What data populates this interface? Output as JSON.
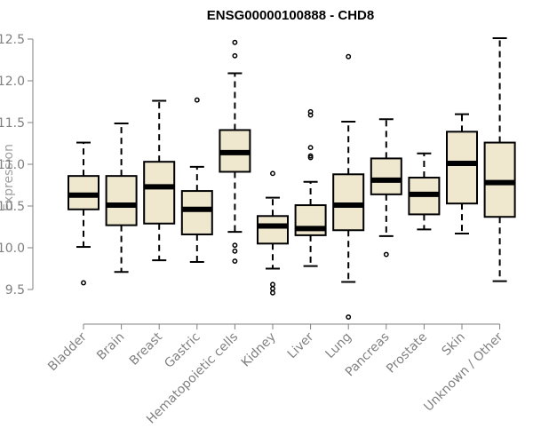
{
  "chart_data": {
    "type": "boxplot",
    "title": "ENSG00000100888 - CHD8",
    "ylabel": "Expression",
    "xlabel": "",
    "ylim": [
      9.2,
      12.55
    ],
    "yticks": [
      "9.5",
      "10.0",
      "10.5",
      "11.0",
      "11.5",
      "12.0",
      "12.5"
    ],
    "box_fill": "#efe8cf",
    "categories": [
      "Bladder",
      "Brain",
      "Breast",
      "Gastric",
      "Hematopoietic cells",
      "Kidney",
      "Liver",
      "Lung",
      "Pancreas",
      "Prostate",
      "Skin",
      "Unknown / Other"
    ],
    "boxes": [
      {
        "whisker_low": 10.01,
        "q1": 10.46,
        "median": 10.63,
        "q3": 10.86,
        "whisker_high": 11.26,
        "outliers": [
          9.58
        ]
      },
      {
        "whisker_low": 9.71,
        "q1": 10.27,
        "median": 10.51,
        "q3": 10.86,
        "whisker_high": 11.49,
        "outliers": []
      },
      {
        "whisker_low": 9.85,
        "q1": 10.29,
        "median": 10.73,
        "q3": 11.03,
        "whisker_high": 11.76,
        "outliers": []
      },
      {
        "whisker_low": 9.83,
        "q1": 10.16,
        "median": 10.46,
        "q3": 10.68,
        "whisker_high": 10.97,
        "outliers": [
          11.77
        ]
      },
      {
        "whisker_low": 10.19,
        "q1": 10.91,
        "median": 11.14,
        "q3": 11.41,
        "whisker_high": 12.09,
        "outliers": [
          9.84,
          9.96,
          10.03,
          12.3,
          12.46
        ]
      },
      {
        "whisker_low": 9.75,
        "q1": 10.05,
        "median": 10.26,
        "q3": 10.38,
        "whisker_high": 10.6,
        "outliers": [
          9.46,
          9.51,
          9.56,
          10.89
        ]
      },
      {
        "whisker_low": 9.78,
        "q1": 10.15,
        "median": 10.23,
        "q3": 10.51,
        "whisker_high": 10.79,
        "outliers": [
          11.08,
          11.1,
          11.2,
          11.59,
          11.63
        ]
      },
      {
        "whisker_low": 9.59,
        "q1": 10.21,
        "median": 10.51,
        "q3": 10.88,
        "whisker_high": 11.51,
        "outliers": [
          9.17,
          12.29
        ]
      },
      {
        "whisker_low": 10.14,
        "q1": 10.64,
        "median": 10.81,
        "q3": 11.07,
        "whisker_high": 11.54,
        "outliers": [
          9.92
        ]
      },
      {
        "whisker_low": 10.22,
        "q1": 10.4,
        "median": 10.64,
        "q3": 10.84,
        "whisker_high": 11.13,
        "outliers": []
      },
      {
        "whisker_low": 10.17,
        "q1": 10.53,
        "median": 11.01,
        "q3": 11.39,
        "whisker_high": 11.6,
        "outliers": []
      },
      {
        "whisker_low": 9.6,
        "q1": 10.37,
        "median": 10.78,
        "q3": 11.26,
        "whisker_high": 12.51,
        "outliers": []
      }
    ]
  }
}
